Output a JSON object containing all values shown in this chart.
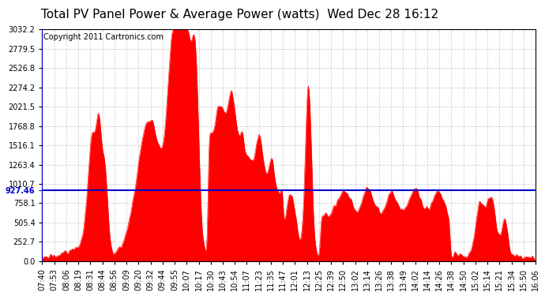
{
  "title": "Total PV Panel Power & Average Power (watts)  Wed Dec 28 16:12",
  "copyright": "Copyright 2011 Cartronics.com",
  "avg_line_value": 927.46,
  "y_max": 3032.2,
  "y_ticks": [
    0.0,
    252.7,
    505.4,
    758.1,
    1010.7,
    1263.4,
    1516.1,
    1768.8,
    2021.5,
    2274.2,
    2526.8,
    2779.5,
    3032.2
  ],
  "x_labels": [
    "07:40",
    "07:53",
    "08:06",
    "08:19",
    "08:31",
    "08:44",
    "08:56",
    "09:09",
    "09:20",
    "09:32",
    "09:44",
    "09:55",
    "10:07",
    "10:17",
    "10:30",
    "10:43",
    "10:54",
    "11:07",
    "11:23",
    "11:35",
    "11:47",
    "12:01",
    "12:13",
    "12:25",
    "12:39",
    "12:50",
    "13:02",
    "13:14",
    "13:26",
    "13:38",
    "13:49",
    "14:02",
    "14:14",
    "14:26",
    "14:38",
    "14:50",
    "15:02",
    "15:14",
    "15:21",
    "15:34",
    "15:50",
    "16:06"
  ],
  "fill_color": "#FF0000",
  "line_color": "#0000CC",
  "background_color": "#FFFFFF",
  "grid_color": "#BBBBBB",
  "title_fontsize": 11,
  "copyright_fontsize": 7,
  "tick_fontsize": 7,
  "avg_label": "927.46"
}
